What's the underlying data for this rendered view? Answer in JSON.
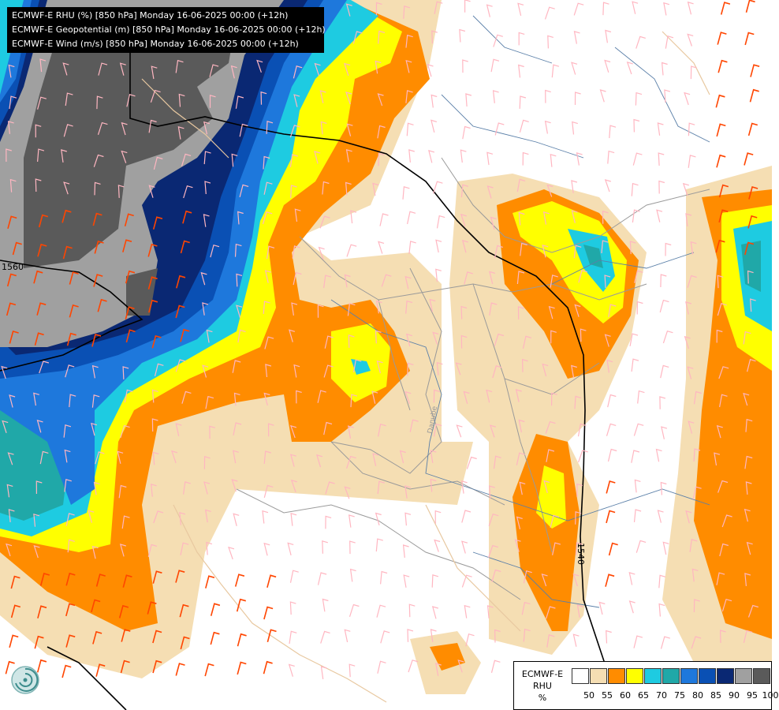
{
  "header": {
    "lines": [
      "ECMWF-E RHU (%) [850 hPa] Monday 16-06-2025 00:00 (+12h)",
      "ECMWF-E Geopotential (m) [850 hPa] Monday 16-06-2025 00:00 (+12h)",
      "ECMWF-E Wind (m/s) [850 hPa] Monday 16-06-2025 00:00 (+12h)"
    ]
  },
  "contours": {
    "geopotential_labels": [
      "1560",
      "1540"
    ]
  },
  "map_labels": {
    "river": "Danube"
  },
  "legend": {
    "title_line1": "ECMWF-E",
    "title_line2": "RHU",
    "title_line3": "%",
    "levels": [
      "50",
      "55",
      "60",
      "65",
      "70",
      "75",
      "80",
      "85",
      "90",
      "95",
      "100"
    ],
    "colors": [
      "#ffffff",
      "#f5deb3",
      "#ff8c00",
      "#ffff00",
      "#1ecbe1",
      "#20a8a8",
      "#1e78dc",
      "#0a50b4",
      "#0a2873",
      "#a0a0a0",
      "#5a5a5a"
    ]
  },
  "colors": {
    "borders": "#9a9a9a",
    "rivers": "#5a7fa8",
    "coast": "#e8c8a0",
    "geopotential": "#000000",
    "wind_weak": "#ffb6c1",
    "wind_strong": "#ff4500"
  },
  "icons": {
    "logo": "ecmwf-swirl-logo"
  }
}
